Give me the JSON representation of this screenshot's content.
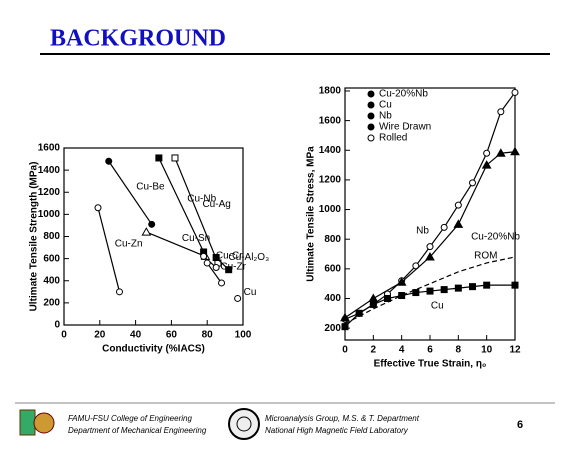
{
  "title": "BACKGROUND",
  "chart_data": [
    {
      "type": "line",
      "x_label": "Conductivity (%IACS)",
      "y_label": "Ultimate Tensile Strength (MPa)",
      "xlim": [
        0,
        100
      ],
      "xticks": [
        0,
        20,
        40,
        60,
        80,
        100
      ],
      "ylim": [
        0,
        1600
      ],
      "yticks": [
        0,
        200,
        400,
        600,
        800,
        1000,
        1200,
        1400,
        1600
      ],
      "color": "#000000",
      "grid": false,
      "series": [
        {
          "name": "Cu-Be",
          "marker": "circle",
          "filled": true,
          "x": [
            25,
            49
          ],
          "y": [
            1480,
            910
          ]
        },
        {
          "name": "Cu-Nb",
          "marker": "square",
          "filled": true,
          "x": [
            53,
            78
          ],
          "y": [
            1510,
            660
          ]
        },
        {
          "name": "Cu-Ag",
          "marker": "square",
          "filled": false,
          "x": [
            62,
            86
          ],
          "y": [
            1510,
            560
          ]
        },
        {
          "name": "Cu-Sn",
          "marker": "triangle",
          "filled": false,
          "x": [
            46,
            79
          ],
          "y": [
            840,
            620
          ]
        },
        {
          "name": "Cu-Cr",
          "marker": "circle",
          "filled": false,
          "x": [
            78,
            85
          ],
          "y": [
            620,
            520
          ]
        },
        {
          "name": "Cu-Zr",
          "marker": "circle",
          "filled": false,
          "x": [
            80,
            88
          ],
          "y": [
            560,
            380
          ]
        },
        {
          "name": "Cu-Al₂O₃",
          "marker": "square",
          "filled": true,
          "x": [
            85,
            92
          ],
          "y": [
            610,
            500
          ]
        },
        {
          "name": "Cu-Zn",
          "marker": "circle",
          "filled": false,
          "x": [
            19,
            31
          ],
          "y": [
            1060,
            300
          ]
        },
        {
          "name": "Cu",
          "marker": "circle",
          "filled": false,
          "x": [
            97
          ],
          "y": [
            240
          ]
        }
      ]
    },
    {
      "type": "line",
      "x_label": "Effective True Strain, η₀",
      "y_label": "Ultimate Tensile Stress, MPa",
      "xlim": [
        0,
        12
      ],
      "xticks": [
        0,
        2,
        4,
        6,
        8,
        10,
        12
      ],
      "ylim": [
        120,
        1820
      ],
      "yticks": [
        200,
        400,
        600,
        800,
        1000,
        1200,
        1400,
        1600,
        1800
      ],
      "color": "#000000",
      "grid": false,
      "legend": [
        "Cu-20%Nb",
        "Cu",
        "Nb",
        "Wire Drawn",
        "Rolled"
      ],
      "series": [
        {
          "name": "Cu-20%Nb",
          "marker": "circle",
          "filled": false,
          "dash": false,
          "x": [
            0,
            1,
            2,
            3,
            4,
            5,
            6,
            7,
            8,
            9,
            10,
            11,
            12
          ],
          "y": [
            260,
            300,
            360,
            430,
            520,
            620,
            750,
            880,
            1030,
            1180,
            1380,
            1660,
            1790
          ]
        },
        {
          "name": "Nb",
          "marker": "triangle",
          "filled": true,
          "dash": false,
          "x": [
            0,
            2,
            4,
            6,
            8,
            10,
            11,
            12
          ],
          "y": [
            270,
            400,
            510,
            680,
            900,
            1300,
            1380,
            1390
          ]
        },
        {
          "name": "Cu",
          "marker": "square",
          "filled": true,
          "dash": false,
          "x": [
            0,
            1,
            2,
            3,
            4,
            5,
            6,
            7,
            8,
            9,
            10,
            12
          ],
          "y": [
            210,
            300,
            360,
            400,
            420,
            440,
            450,
            460,
            470,
            480,
            490,
            490
          ]
        },
        {
          "name": "ROM",
          "marker": "none",
          "filled": false,
          "dash": true,
          "x": [
            0,
            2,
            4,
            6,
            8,
            10,
            12
          ],
          "y": [
            230,
            330,
            420,
            500,
            580,
            640,
            680
          ]
        }
      ]
    }
  ],
  "footer": {
    "left": [
      "FAMU-FSU College of Engineering",
      "Department of Mechanical Engineering"
    ],
    "center": [
      "Microanalysis Group, M.S. & T. Department",
      "National High Magnetic Field Laboratory"
    ],
    "page": "6"
  }
}
